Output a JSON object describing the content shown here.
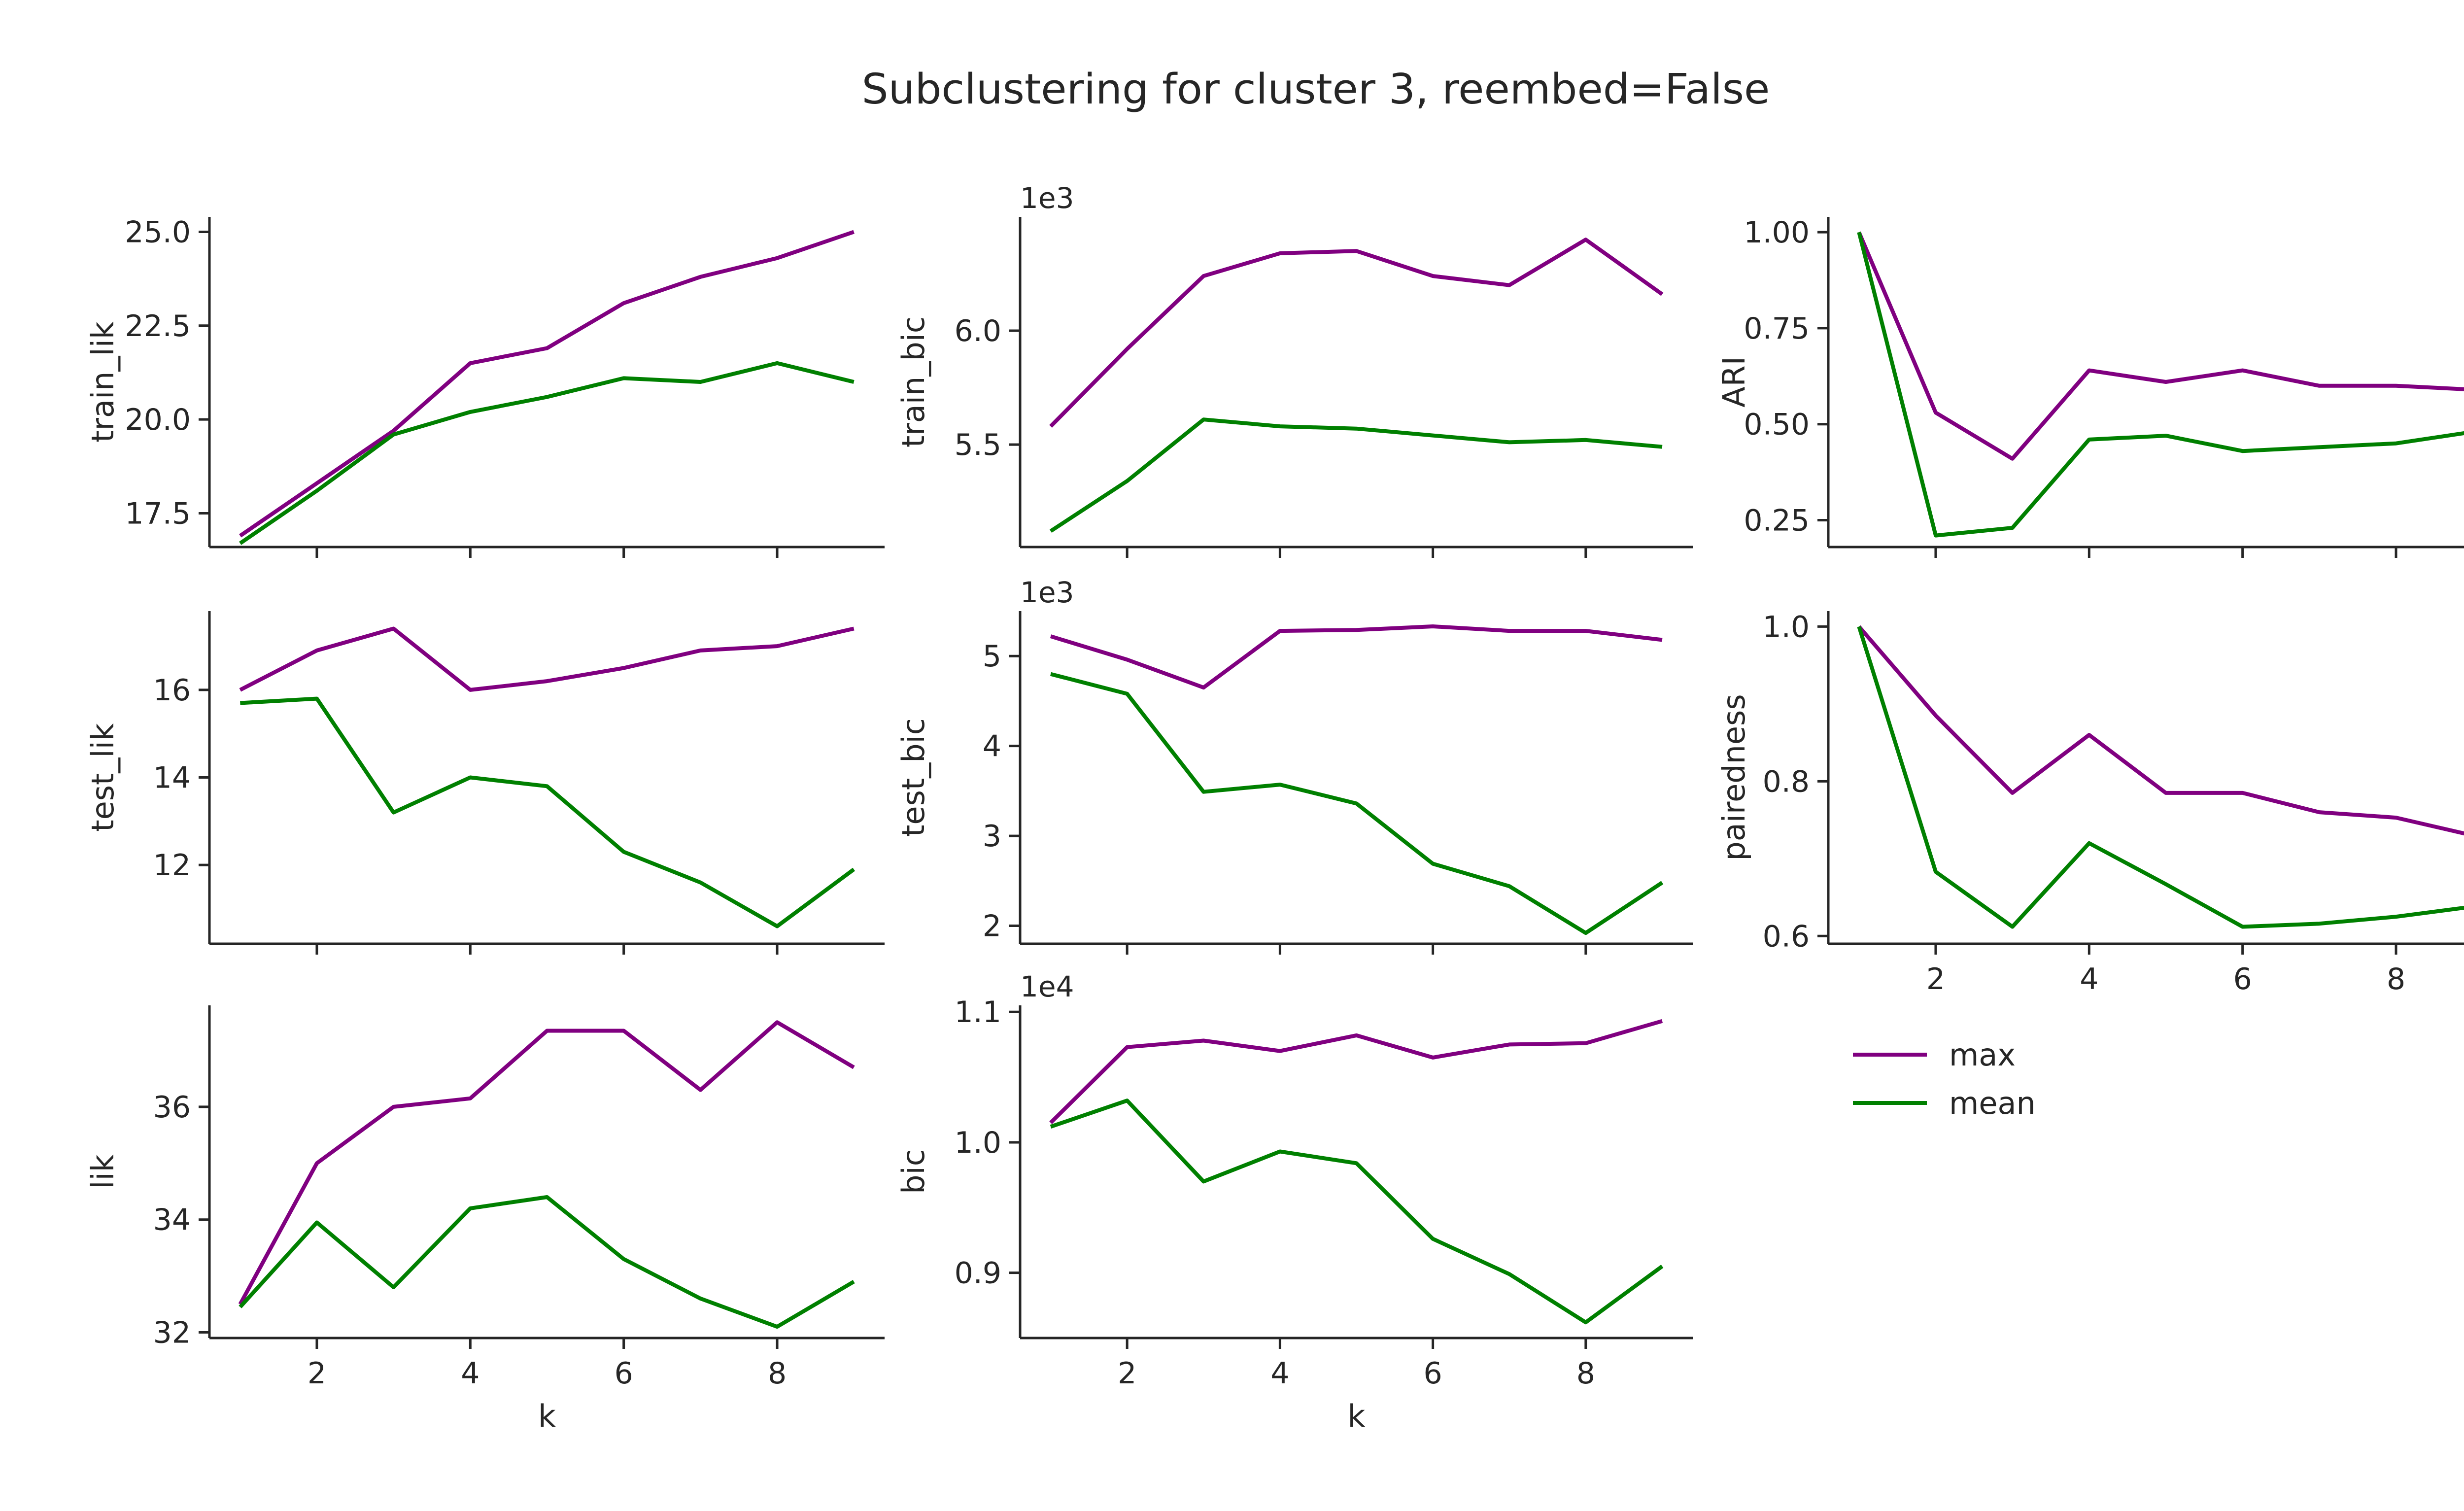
{
  "figure": {
    "title": "Subclustering for cluster 3, reembed=False"
  },
  "legend": {
    "entries": [
      {
        "label": "max",
        "color": "#800080"
      },
      {
        "label": "mean",
        "color": "#008000"
      }
    ]
  },
  "chart_data": [
    {
      "id": "train_lik",
      "type": "line",
      "xlabel": "",
      "ylabel": "train_lik",
      "offset_text": "",
      "x": [
        1,
        2,
        3,
        4,
        5,
        6,
        7,
        8,
        9
      ],
      "xlim": [
        0.6,
        9.4
      ],
      "xticks": [
        2,
        4,
        6,
        8
      ],
      "xtick_labels_visible": false,
      "ylim": [
        16.6,
        25.4
      ],
      "yticks": [
        17.5,
        20.0,
        22.5,
        25.0
      ],
      "ytick_labels": [
        "17.5",
        "20.0",
        "22.5",
        "25.0"
      ],
      "series": [
        {
          "name": "max",
          "color": "#800080",
          "values": [
            16.9,
            18.3,
            19.7,
            21.5,
            21.9,
            23.1,
            23.8,
            24.3,
            25.0
          ]
        },
        {
          "name": "mean",
          "color": "#008000",
          "values": [
            16.7,
            18.1,
            19.6,
            20.2,
            20.6,
            21.1,
            21.0,
            21.5,
            21.0
          ]
        }
      ]
    },
    {
      "id": "train_bic",
      "type": "line",
      "xlabel": "",
      "ylabel": "train_bic",
      "offset_text": "1e3",
      "x": [
        1,
        2,
        3,
        4,
        5,
        6,
        7,
        8,
        9
      ],
      "xlim": [
        0.6,
        9.4
      ],
      "xticks": [
        2,
        4,
        6,
        8
      ],
      "xtick_labels_visible": false,
      "ylim": [
        5.05,
        6.5
      ],
      "yticks": [
        5.5,
        6.0
      ],
      "ytick_labels": [
        "5.5",
        "6.0"
      ],
      "series": [
        {
          "name": "max",
          "color": "#800080",
          "values": [
            5.58,
            5.92,
            6.24,
            6.34,
            6.35,
            6.24,
            6.2,
            6.4,
            6.16
          ]
        },
        {
          "name": "mean",
          "color": "#008000",
          "values": [
            5.12,
            5.34,
            5.61,
            5.58,
            5.57,
            5.54,
            5.51,
            5.52,
            5.49
          ]
        }
      ]
    },
    {
      "id": "ARI",
      "type": "line",
      "xlabel": "",
      "ylabel": "ARI",
      "offset_text": "",
      "x": [
        1,
        2,
        3,
        4,
        5,
        6,
        7,
        8,
        9
      ],
      "xlim": [
        0.6,
        9.4
      ],
      "xticks": [
        2,
        4,
        6,
        8
      ],
      "xtick_labels_visible": false,
      "ylim": [
        0.18,
        1.04
      ],
      "yticks": [
        0.25,
        0.5,
        0.75,
        1.0
      ],
      "ytick_labels": [
        "0.25",
        "0.50",
        "0.75",
        "1.00"
      ],
      "series": [
        {
          "name": "max",
          "color": "#800080",
          "values": [
            1.0,
            0.53,
            0.41,
            0.64,
            0.61,
            0.64,
            0.6,
            0.6,
            0.59
          ]
        },
        {
          "name": "mean",
          "color": "#008000",
          "values": [
            1.0,
            0.21,
            0.23,
            0.46,
            0.47,
            0.43,
            0.44,
            0.45,
            0.48
          ]
        }
      ]
    },
    {
      "id": "test_lik",
      "type": "line",
      "xlabel": "",
      "ylabel": "test_lik",
      "offset_text": "",
      "x": [
        1,
        2,
        3,
        4,
        5,
        6,
        7,
        8,
        9
      ],
      "xlim": [
        0.6,
        9.4
      ],
      "xticks": [
        2,
        4,
        6,
        8
      ],
      "xtick_labels_visible": false,
      "ylim": [
        10.2,
        17.8
      ],
      "yticks": [
        12,
        14,
        16
      ],
      "ytick_labels": [
        "12",
        "14",
        "16"
      ],
      "series": [
        {
          "name": "max",
          "color": "#800080",
          "values": [
            16.0,
            16.9,
            17.4,
            16.0,
            16.2,
            16.5,
            16.9,
            17.0,
            17.4
          ]
        },
        {
          "name": "mean",
          "color": "#008000",
          "values": [
            15.7,
            15.8,
            13.2,
            14.0,
            13.8,
            12.3,
            11.6,
            10.6,
            11.9
          ]
        }
      ]
    },
    {
      "id": "test_bic",
      "type": "line",
      "xlabel": "",
      "ylabel": "test_bic",
      "offset_text": "1e3",
      "x": [
        1,
        2,
        3,
        4,
        5,
        6,
        7,
        8,
        9
      ],
      "xlim": [
        0.6,
        9.4
      ],
      "xticks": [
        2,
        4,
        6,
        8
      ],
      "xtick_labels_visible": false,
      "ylim": [
        1.8,
        5.5
      ],
      "yticks": [
        2,
        3,
        4,
        5
      ],
      "ytick_labels": [
        "2",
        "3",
        "4",
        "5"
      ],
      "series": [
        {
          "name": "max",
          "color": "#800080",
          "values": [
            5.22,
            4.96,
            4.65,
            5.28,
            5.29,
            5.33,
            5.28,
            5.28,
            5.18
          ]
        },
        {
          "name": "mean",
          "color": "#008000",
          "values": [
            4.8,
            4.58,
            3.49,
            3.57,
            3.36,
            2.69,
            2.44,
            1.92,
            2.48
          ]
        }
      ]
    },
    {
      "id": "pairedness",
      "type": "line",
      "xlabel": "",
      "ylabel": "pairedness",
      "offset_text": "",
      "x": [
        1,
        2,
        3,
        4,
        5,
        6,
        7,
        8,
        9
      ],
      "xlim": [
        0.6,
        9.4
      ],
      "xticks": [
        2,
        4,
        6,
        8
      ],
      "xtick_labels": [
        "2",
        "4",
        "6",
        "8"
      ],
      "xtick_labels_visible": true,
      "ylim": [
        0.59,
        1.02
      ],
      "yticks": [
        0.6,
        0.8,
        1.0
      ],
      "ytick_labels": [
        "0.6",
        "0.8",
        "1.0"
      ],
      "series": [
        {
          "name": "max",
          "color": "#800080",
          "values": [
            1.0,
            0.885,
            0.785,
            0.86,
            0.785,
            0.785,
            0.76,
            0.753,
            0.73
          ]
        },
        {
          "name": "mean",
          "color": "#008000",
          "values": [
            1.0,
            0.683,
            0.612,
            0.72,
            0.667,
            0.612,
            0.616,
            0.625,
            0.638
          ]
        }
      ]
    },
    {
      "id": "lik",
      "type": "line",
      "xlabel": "k",
      "ylabel": "lik",
      "offset_text": "",
      "x": [
        1,
        2,
        3,
        4,
        5,
        6,
        7,
        8,
        9
      ],
      "xlim": [
        0.6,
        9.4
      ],
      "xticks": [
        2,
        4,
        6,
        8
      ],
      "xtick_labels": [
        "2",
        "4",
        "6",
        "8"
      ],
      "xtick_labels_visible": true,
      "ylim": [
        31.9,
        37.8
      ],
      "yticks": [
        32,
        34,
        36
      ],
      "ytick_labels": [
        "32",
        "34",
        "36"
      ],
      "series": [
        {
          "name": "max",
          "color": "#800080",
          "values": [
            32.5,
            35.0,
            36.0,
            36.15,
            37.35,
            37.35,
            36.3,
            37.5,
            36.7
          ]
        },
        {
          "name": "mean",
          "color": "#008000",
          "values": [
            32.45,
            33.95,
            32.8,
            34.2,
            34.4,
            33.3,
            32.6,
            32.1,
            32.9
          ]
        }
      ]
    },
    {
      "id": "bic",
      "type": "line",
      "xlabel": "k",
      "ylabel": "bic",
      "offset_text": "1e4",
      "x": [
        1,
        2,
        3,
        4,
        5,
        6,
        7,
        8,
        9
      ],
      "xlim": [
        0.6,
        9.4
      ],
      "xticks": [
        2,
        4,
        6,
        8
      ],
      "xtick_labels": [
        "2",
        "4",
        "6",
        "8"
      ],
      "xtick_labels_visible": true,
      "ylim": [
        0.85,
        1.105
      ],
      "yticks": [
        0.9,
        1.0,
        1.1
      ],
      "ytick_labels": [
        "0.9",
        "1.0",
        "1.1"
      ],
      "series": [
        {
          "name": "max",
          "color": "#800080",
          "values": [
            1.015,
            1.073,
            1.078,
            1.07,
            1.082,
            1.065,
            1.075,
            1.076,
            1.093
          ]
        },
        {
          "name": "mean",
          "color": "#008000",
          "values": [
            1.012,
            1.032,
            0.97,
            0.993,
            0.984,
            0.926,
            0.899,
            0.862,
            0.905
          ]
        }
      ]
    }
  ]
}
